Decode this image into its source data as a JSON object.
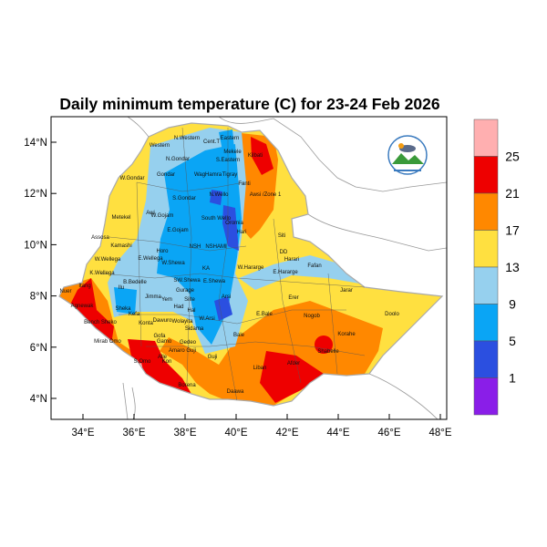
{
  "title": "Daily minimum temperature (C) for 23-24 Feb 2026",
  "map": {
    "region": "Ethiopia",
    "x_ticks": [
      "34°E",
      "36°E",
      "38°E",
      "40°E",
      "42°E",
      "44°E",
      "46°E",
      "48°E"
    ],
    "y_ticks": [
      "14°N",
      "12°N",
      "10°N",
      "8°N",
      "6°N",
      "4°N"
    ],
    "colorbar": {
      "labels": [
        "25",
        "21",
        "17",
        "13",
        "9",
        "5",
        "1"
      ],
      "colors": [
        "#ffafb0",
        "#ee0000",
        "#ff8800",
        "#ffe040",
        "#96d0ee",
        "#0aa5f5",
        "#2b4fe0",
        "#8a1ee8"
      ]
    },
    "region_labels": [
      "N.Western",
      "Cent.T",
      "Eastern",
      "Western",
      "Mekele",
      "N.Gondar",
      "S.Eastern",
      "Kilbati",
      "W.Gondar",
      "Gondar",
      "WagHamra",
      "Tigray",
      "Fanti",
      "S.Gondar",
      "N.Wello",
      "Awsi /Zone 1",
      "Metekel",
      "Awi",
      "W.Gojam",
      "South Wello",
      "Oromia",
      "Hari",
      "E.Gojam",
      "Siti",
      "Assosa",
      "Kamashi",
      "Horo",
      "NSH",
      "NSHAMI",
      "DD",
      "Harari",
      "Fafan",
      "W.Wellega",
      "E.Wellega",
      "W.Shewa",
      "KA",
      "W.Hararge",
      "E.Hararge",
      "K.Wellega",
      "B.Bedelle",
      "SW.Shewa",
      "E.Shewa",
      "Jarar",
      "Ilu",
      "Gurage",
      "Nuer",
      "Itang",
      "Jimma",
      "Yem",
      "Silte",
      "Arsi",
      "Agnewak",
      "Sheka",
      "Had",
      "Hal",
      "Erer",
      "Kefa",
      "W.Arsi",
      "Dawuro",
      "Wolayita",
      "E.Bale",
      "Nogob",
      "Doolo",
      "Bench Sheko",
      "Konta",
      "Sidama",
      "Korahe",
      "Mirab Omo",
      "Gofa",
      "Bale",
      "Gamo",
      "Gedeo",
      "Shabelle",
      "Amaro Guji",
      "Alle",
      "Guji",
      "Kon",
      "S.Omo",
      "Liban",
      "Afder",
      "Borena",
      "Daawa"
    ]
  }
}
